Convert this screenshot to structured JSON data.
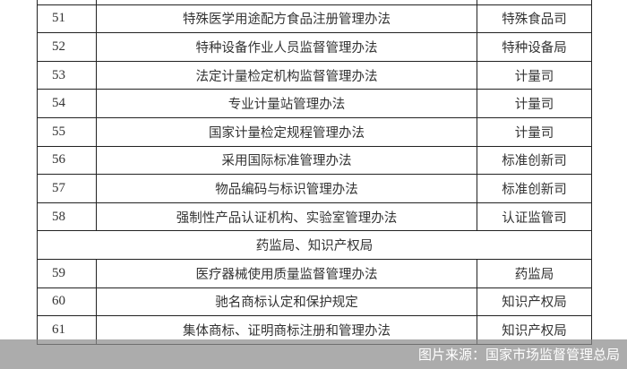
{
  "rows_before": [
    {
      "no": "51",
      "name": "特殊医学用途配方食品注册管理办法",
      "dept": "特殊食品司"
    },
    {
      "no": "52",
      "name": "特种设备作业人员监督管理办法",
      "dept": "特种设备局"
    },
    {
      "no": "53",
      "name": "法定计量检定机构监督管理办法",
      "dept": "计量司"
    },
    {
      "no": "54",
      "name": "专业计量站管理办法",
      "dept": "计量司"
    },
    {
      "no": "55",
      "name": "国家计量检定规程管理办法",
      "dept": "计量司"
    },
    {
      "no": "56",
      "name": "采用国际标准管理办法",
      "dept": "标准创新司"
    },
    {
      "no": "57",
      "name": "物品编码与标识管理办法",
      "dept": "标准创新司"
    },
    {
      "no": "58",
      "name": "强制性产品认证机构、实验室管理办法",
      "dept": "认证监管司"
    }
  ],
  "section": "药监局、知识产权局",
  "rows_after": [
    {
      "no": "59",
      "name": "医疗器械使用质量监督管理办法",
      "dept": "药监局"
    },
    {
      "no": "60",
      "name": "驰名商标认定和保护规定",
      "dept": "知识产权局"
    },
    {
      "no": "61",
      "name": "集体商标、证明商标注册和管理办法",
      "dept": "知识产权局"
    }
  ],
  "caption": "图片来源：国家市场监督管理总局"
}
